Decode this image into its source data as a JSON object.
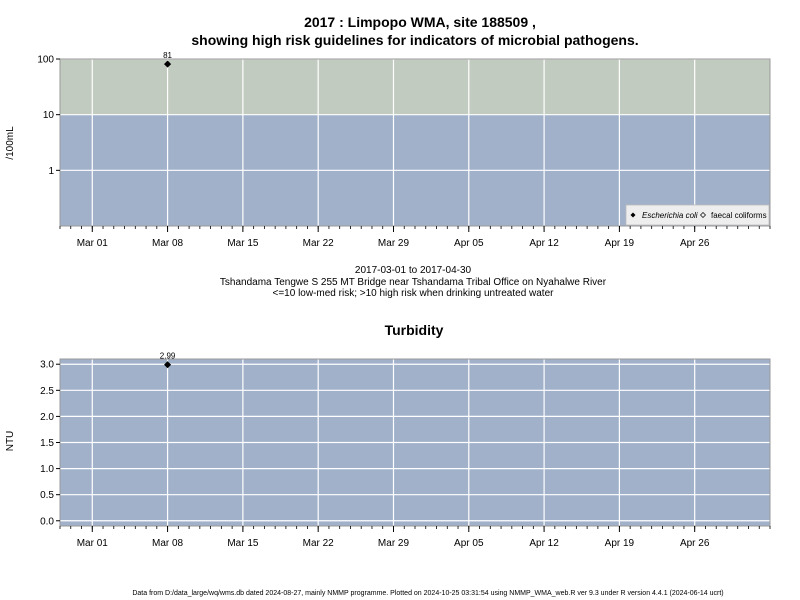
{
  "chart_data": [
    {
      "type": "scatter",
      "title_line1": "2017 : Limpopo WMA, site 188509 ,",
      "title_line2": "showing high risk guidelines for indicators of microbial pathogens.",
      "ylabel": "/100mL",
      "y_scale": "log",
      "ylim": [
        0.1,
        100
      ],
      "yticks": [
        {
          "value": 1,
          "label": "1"
        },
        {
          "value": 10,
          "label": "10"
        },
        {
          "value": 100,
          "label": "100"
        }
      ],
      "xlim": [
        "2017-02-26",
        "2017-05-03"
      ],
      "xticks": [
        {
          "date": "2017-03-01",
          "label": "Mar 01"
        },
        {
          "date": "2017-03-08",
          "label": "Mar 08"
        },
        {
          "date": "2017-03-15",
          "label": "Mar 15"
        },
        {
          "date": "2017-03-22",
          "label": "Mar 22"
        },
        {
          "date": "2017-03-29",
          "label": "Mar 29"
        },
        {
          "date": "2017-04-05",
          "label": "Apr 05"
        },
        {
          "date": "2017-04-12",
          "label": "Apr 12"
        },
        {
          "date": "2017-04-19",
          "label": "Apr 19"
        },
        {
          "date": "2017-04-26",
          "label": "Apr 26"
        }
      ],
      "zones": [
        {
          "from": 0.1,
          "to": 10,
          "color": "#a1b1ca"
        },
        {
          "from": 10,
          "to": 100,
          "color": "#c2cbbf"
        }
      ],
      "grid": true,
      "legend_position": "bottom-right",
      "series": [
        {
          "name": "Escherichia coli",
          "marker": "filled-diamond",
          "color": "#000000",
          "points": [
            {
              "x": "2017-03-08",
              "y": 81,
              "label": "81"
            }
          ]
        },
        {
          "name": "faecal coliforms",
          "marker": "open-diamond",
          "color": "#000000",
          "points": []
        }
      ]
    },
    {
      "type": "scatter",
      "title": "Turbidity",
      "ylabel": "NTU",
      "ylim": [
        -0.1,
        3.1
      ],
      "yticks": [
        {
          "value": 0.0,
          "label": "0.0"
        },
        {
          "value": 0.5,
          "label": "0.5"
        },
        {
          "value": 1.0,
          "label": "1.0"
        },
        {
          "value": 1.5,
          "label": "1.5"
        },
        {
          "value": 2.0,
          "label": "2.0"
        },
        {
          "value": 2.5,
          "label": "2.5"
        },
        {
          "value": 3.0,
          "label": "3.0"
        }
      ],
      "xlim": [
        "2017-02-26",
        "2017-05-03"
      ],
      "xticks": [
        {
          "date": "2017-03-01",
          "label": "Mar 01"
        },
        {
          "date": "2017-03-08",
          "label": "Mar 08"
        },
        {
          "date": "2017-03-15",
          "label": "Mar 15"
        },
        {
          "date": "2017-03-22",
          "label": "Mar 22"
        },
        {
          "date": "2017-03-29",
          "label": "Mar 29"
        },
        {
          "date": "2017-04-05",
          "label": "Apr 05"
        },
        {
          "date": "2017-04-12",
          "label": "Apr 12"
        },
        {
          "date": "2017-04-19",
          "label": "Apr 19"
        },
        {
          "date": "2017-04-26",
          "label": "Apr 26"
        }
      ],
      "background": "#a1b1ca",
      "grid": true,
      "series": [
        {
          "marker": "filled-diamond",
          "color": "#000000",
          "points": [
            {
              "x": "2017-03-08",
              "y": 2.99,
              "label": "2.99"
            }
          ]
        }
      ]
    }
  ],
  "caption": {
    "date_range": "2017-03-01 to 2017-04-30",
    "site_description": "Tshandama Tengwe S 255 MT Bridge near Tshandama Tribal Office on Nyahalwe River",
    "risk_note": "<=10 low-med risk; >10 high risk when drinking untreated water"
  },
  "footer": "Data from D:/data_large/wq/wms.db dated 2024-08-27, mainly NMMP programme. Plotted on 2024-10-25 03:31:54 using NMMP_WMA_web.R ver 9.3 under R version 4.4.1 (2024-06-14 ucrt)"
}
